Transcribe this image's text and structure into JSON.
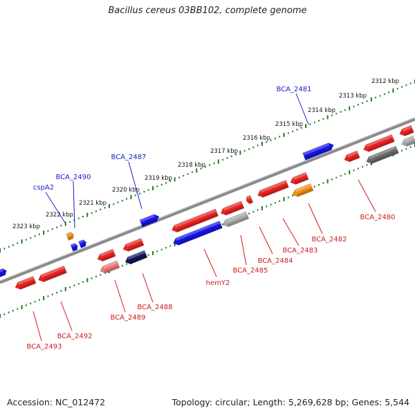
{
  "header": {
    "title": "Bacillus cereus 03BB102, complete genome"
  },
  "footer": {
    "accession": "Accession: NC_012472",
    "summary": "Topology: circular; Length: 5,269,628 bp; Genes: 5,544"
  },
  "colors": {
    "red": "#e8231f",
    "blue": "#1414e6",
    "orange": "#f08c14",
    "gray": "#a8a8a8",
    "navy": "#14145a",
    "pink": "#e87878",
    "dark_gray": "#6a6a6a",
    "tick_green": "#1e7a1e",
    "label_blue": "#1a1acc",
    "label_red": "#cc1a1a"
  },
  "scale": {
    "labels": [
      "2312 kbp",
      "2313 kbp",
      "2314 kbp",
      "2315 kbp",
      "2316 kbp",
      "2317 kbp",
      "2318 kbp",
      "2319 kbp",
      "2320 kbp",
      "2321 kbp",
      "2322 kbp",
      "2323 kbp"
    ]
  },
  "genes": {
    "upper": [
      {
        "label": "BCA_2481",
        "color": "blue"
      },
      {
        "label": "BCA_2487",
        "color": "blue"
      },
      {
        "label": "BCA_2490",
        "color": "blue"
      },
      {
        "label": "cspA2",
        "color": "blue"
      }
    ],
    "lower": [
      {
        "label": "BCA_2480",
        "color": "red"
      },
      {
        "label": "BCA_2482",
        "color": "red"
      },
      {
        "label": "BCA_2483",
        "color": "red"
      },
      {
        "label": "BCA_2484",
        "color": "red"
      },
      {
        "label": "BCA_2485",
        "color": "red"
      },
      {
        "label": "hemY2",
        "color": "red"
      },
      {
        "label": "BCA_2488",
        "color": "red"
      },
      {
        "label": "BCA_2489",
        "color": "red"
      },
      {
        "label": "BCA_2492",
        "color": "red"
      },
      {
        "label": "BCA_2493",
        "color": "red"
      }
    ]
  }
}
